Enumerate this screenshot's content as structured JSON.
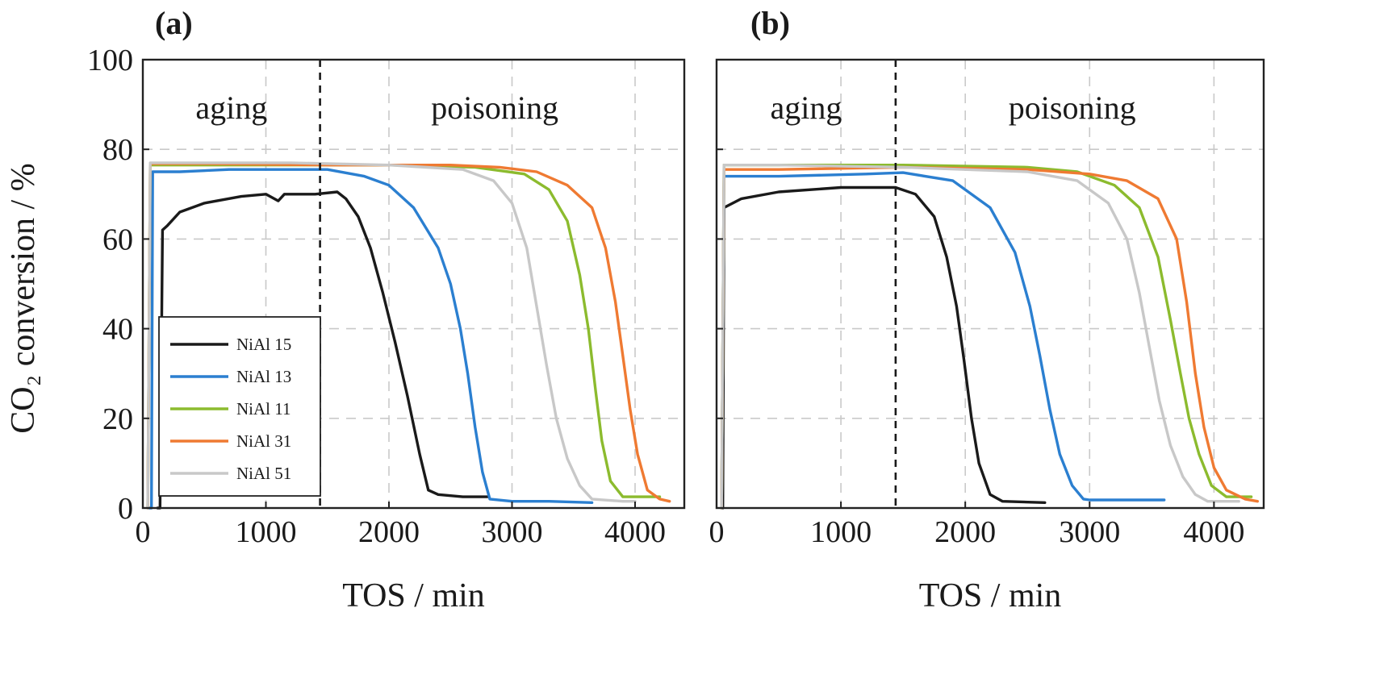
{
  "chart_data": [
    {
      "type": "line",
      "panel_label": "(a)",
      "xlabel": "TOS / min",
      "ylabel": "CO₂ conversion / %",
      "xlim": [
        0,
        4400
      ],
      "ylim": [
        0,
        100
      ],
      "xticks": [
        0,
        1000,
        2000,
        3000,
        4000
      ],
      "yticks": [
        0,
        20,
        40,
        60,
        80,
        100
      ],
      "grid": true,
      "divider_x": 1440,
      "region_labels": [
        {
          "text": "aging",
          "x": 720,
          "y": 89
        },
        {
          "text": "poisoning",
          "x": 2860,
          "y": 89
        }
      ],
      "legend": {
        "placement": "bottom-left"
      },
      "series": [
        {
          "name": "NiAl 15",
          "color": "#1a1a1a",
          "points": [
            [
              120,
              0
            ],
            [
              140,
              0
            ],
            [
              160,
              62
            ],
            [
              200,
              63
            ],
            [
              300,
              66
            ],
            [
              500,
              68
            ],
            [
              800,
              69.5
            ],
            [
              1000,
              70
            ],
            [
              1100,
              68.5
            ],
            [
              1150,
              70
            ],
            [
              1400,
              70
            ],
            [
              1580,
              70.5
            ],
            [
              1650,
              69
            ],
            [
              1750,
              65
            ],
            [
              1850,
              58
            ],
            [
              1950,
              48
            ],
            [
              2050,
              37
            ],
            [
              2150,
              25
            ],
            [
              2250,
              12
            ],
            [
              2320,
              4
            ],
            [
              2400,
              3
            ],
            [
              2600,
              2.5
            ],
            [
              2800,
              2.5
            ]
          ]
        },
        {
          "name": "NiAl 13",
          "color": "#2b7fd0",
          "points": [
            [
              50,
              0
            ],
            [
              70,
              0
            ],
            [
              80,
              75
            ],
            [
              300,
              75
            ],
            [
              700,
              75.5
            ],
            [
              1200,
              75.5
            ],
            [
              1500,
              75.5
            ],
            [
              1800,
              74
            ],
            [
              2000,
              72
            ],
            [
              2200,
              67
            ],
            [
              2400,
              58
            ],
            [
              2500,
              50
            ],
            [
              2580,
              40
            ],
            [
              2640,
              30
            ],
            [
              2700,
              18
            ],
            [
              2760,
              8
            ],
            [
              2820,
              2
            ],
            [
              3000,
              1.5
            ],
            [
              3300,
              1.5
            ],
            [
              3650,
              1.2
            ]
          ]
        },
        {
          "name": "NiAl 11",
          "color": "#8cbb2e",
          "points": [
            [
              40,
              0
            ],
            [
              60,
              76.5
            ],
            [
              300,
              76.5
            ],
            [
              1000,
              76.5
            ],
            [
              2000,
              76.5
            ],
            [
              2700,
              76
            ],
            [
              3100,
              74.5
            ],
            [
              3300,
              71
            ],
            [
              3450,
              64
            ],
            [
              3550,
              52
            ],
            [
              3620,
              40
            ],
            [
              3680,
              26
            ],
            [
              3730,
              15
            ],
            [
              3800,
              6
            ],
            [
              3900,
              2.5
            ],
            [
              4100,
              2.5
            ],
            [
              4200,
              2.5
            ]
          ]
        },
        {
          "name": "NiAl 31",
          "color": "#ef7a32",
          "points": [
            [
              40,
              0
            ],
            [
              60,
              76.8
            ],
            [
              500,
              76.8
            ],
            [
              1500,
              76.5
            ],
            [
              2500,
              76.5
            ],
            [
              2900,
              76
            ],
            [
              3200,
              75
            ],
            [
              3450,
              72
            ],
            [
              3650,
              67
            ],
            [
              3760,
              58
            ],
            [
              3840,
              46
            ],
            [
              3900,
              34
            ],
            [
              3960,
              22
            ],
            [
              4020,
              12
            ],
            [
              4100,
              4
            ],
            [
              4200,
              2
            ],
            [
              4280,
              1.5
            ]
          ]
        },
        {
          "name": "NiAl 51",
          "color": "#c8c8c8",
          "points": [
            [
              40,
              0
            ],
            [
              60,
              77
            ],
            [
              500,
              77
            ],
            [
              1200,
              77
            ],
            [
              2000,
              76.5
            ],
            [
              2600,
              75.5
            ],
            [
              2850,
              73
            ],
            [
              3000,
              68
            ],
            [
              3120,
              58
            ],
            [
              3200,
              45
            ],
            [
              3280,
              32
            ],
            [
              3360,
              20
            ],
            [
              3450,
              11
            ],
            [
              3550,
              5
            ],
            [
              3650,
              2
            ],
            [
              3900,
              1.5
            ],
            [
              4000,
              1.5
            ]
          ]
        }
      ]
    },
    {
      "type": "line",
      "panel_label": "(b)",
      "xlabel": "TOS / min",
      "ylabel": "",
      "xlim": [
        0,
        4400
      ],
      "ylim": [
        0,
        100
      ],
      "xticks": [
        0,
        1000,
        2000,
        3000,
        4000
      ],
      "yticks": [
        0,
        20,
        40,
        60,
        80,
        100
      ],
      "grid": true,
      "divider_x": 1440,
      "region_labels": [
        {
          "text": "aging",
          "x": 720,
          "y": 89
        },
        {
          "text": "poisoning",
          "x": 2860,
          "y": 89
        }
      ],
      "series": [
        {
          "name": "NiAl 15",
          "color": "#1a1a1a",
          "points": [
            [
              50,
              0
            ],
            [
              60,
              67
            ],
            [
              200,
              69
            ],
            [
              500,
              70.5
            ],
            [
              1000,
              71.5
            ],
            [
              1440,
              71.5
            ],
            [
              1600,
              70
            ],
            [
              1750,
              65
            ],
            [
              1850,
              56
            ],
            [
              1930,
              45
            ],
            [
              1990,
              33
            ],
            [
              2050,
              20
            ],
            [
              2110,
              10
            ],
            [
              2200,
              3
            ],
            [
              2300,
              1.5
            ],
            [
              2640,
              1.2
            ]
          ]
        },
        {
          "name": "NiAl 13",
          "color": "#2b7fd0",
          "points": [
            [
              40,
              0
            ],
            [
              60,
              74
            ],
            [
              500,
              74
            ],
            [
              1200,
              74.5
            ],
            [
              1500,
              74.8
            ],
            [
              1900,
              73
            ],
            [
              2200,
              67
            ],
            [
              2400,
              57
            ],
            [
              2520,
              45
            ],
            [
              2600,
              34
            ],
            [
              2680,
              22
            ],
            [
              2760,
              12
            ],
            [
              2860,
              5
            ],
            [
              2950,
              2
            ],
            [
              3000,
              1.8
            ],
            [
              3300,
              1.8
            ],
            [
              3600,
              1.8
            ]
          ]
        },
        {
          "name": "NiAl 11",
          "color": "#8cbb2e",
          "points": [
            [
              40,
              0
            ],
            [
              60,
              76.5
            ],
            [
              500,
              76.5
            ],
            [
              1500,
              76.5
            ],
            [
              2500,
              76
            ],
            [
              2900,
              75
            ],
            [
              3200,
              72
            ],
            [
              3400,
              67
            ],
            [
              3550,
              56
            ],
            [
              3650,
              42
            ],
            [
              3730,
              30
            ],
            [
              3800,
              20
            ],
            [
              3880,
              12
            ],
            [
              3980,
              5
            ],
            [
              4100,
              2.5
            ],
            [
              4300,
              2.5
            ]
          ]
        },
        {
          "name": "NiAl 31",
          "color": "#ef7a32",
          "points": [
            [
              40,
              0
            ],
            [
              60,
              75.5
            ],
            [
              500,
              75.5
            ],
            [
              1500,
              76
            ],
            [
              2500,
              75.5
            ],
            [
              3000,
              74.5
            ],
            [
              3300,
              73
            ],
            [
              3550,
              69
            ],
            [
              3700,
              60
            ],
            [
              3780,
              46
            ],
            [
              3850,
              30
            ],
            [
              3920,
              18
            ],
            [
              4000,
              9
            ],
            [
              4100,
              4
            ],
            [
              4250,
              2
            ],
            [
              4350,
              1.5
            ]
          ]
        },
        {
          "name": "NiAl 51",
          "color": "#c8c8c8",
          "points": [
            [
              40,
              0
            ],
            [
              60,
              76.5
            ],
            [
              500,
              76.5
            ],
            [
              1500,
              76
            ],
            [
              2500,
              75
            ],
            [
              2900,
              73
            ],
            [
              3150,
              68
            ],
            [
              3300,
              60
            ],
            [
              3400,
              48
            ],
            [
              3480,
              36
            ],
            [
              3560,
              24
            ],
            [
              3650,
              14
            ],
            [
              3750,
              7
            ],
            [
              3850,
              3
            ],
            [
              3950,
              1.5
            ],
            [
              4200,
              1.5
            ]
          ]
        }
      ]
    }
  ]
}
